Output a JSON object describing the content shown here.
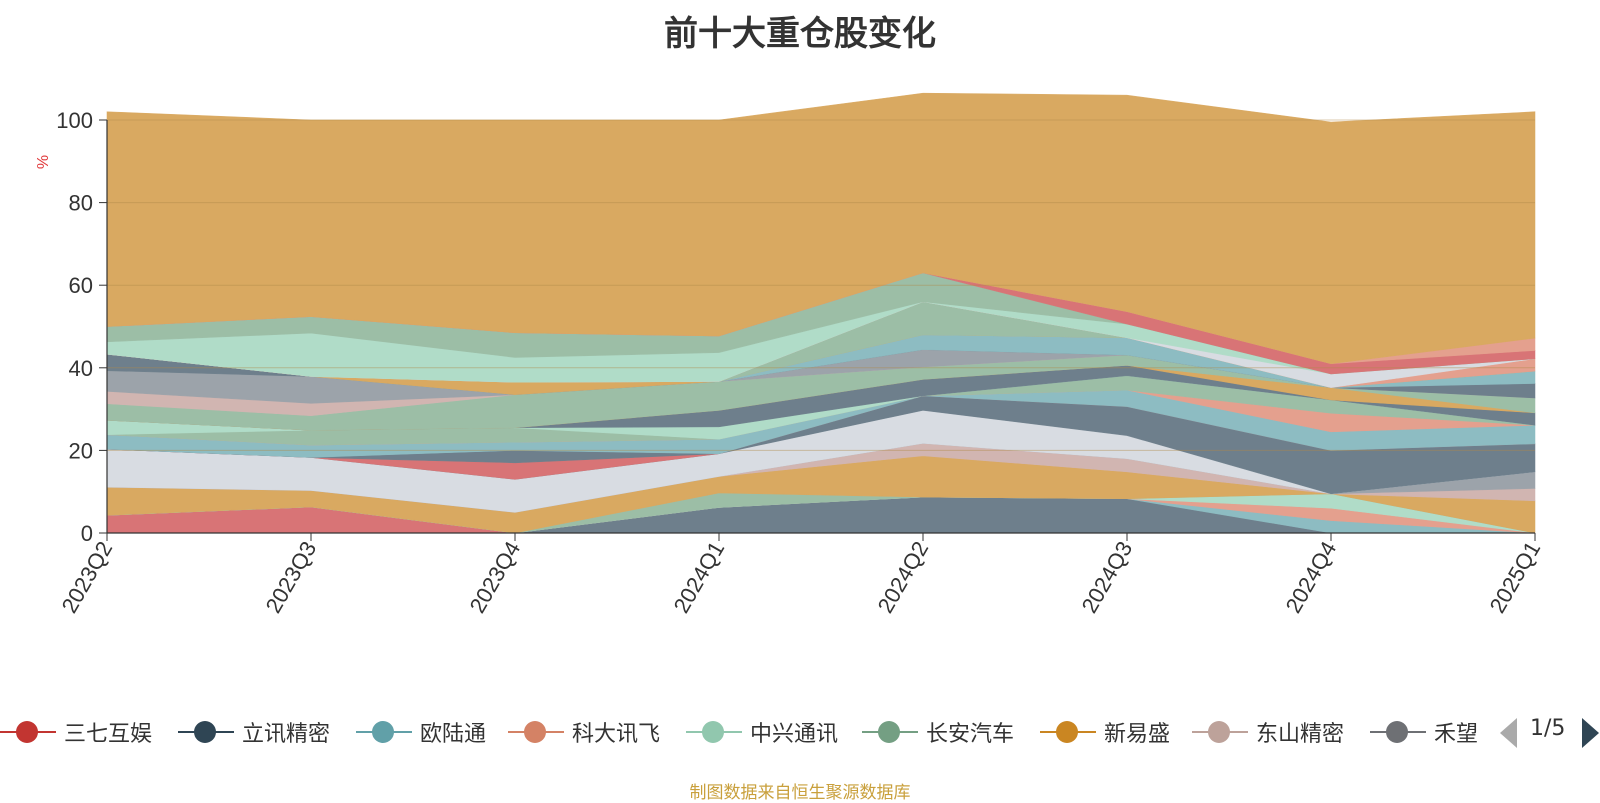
{
  "chart_data": {
    "type": "area",
    "title": "前十大重仓股变化",
    "ylabel": "%",
    "ylim": [
      0,
      100
    ],
    "yticks": [
      0,
      20,
      40,
      60,
      80,
      100
    ],
    "grid": true,
    "stacked": true,
    "categories": [
      "2023Q2",
      "2023Q3",
      "2023Q4",
      "2024Q1",
      "2024Q2",
      "2024Q3",
      "2024Q4",
      "2025Q1"
    ],
    "layers": [
      {
        "values": [
          4.3,
          6.3,
          0.0,
          0.0,
          0.0,
          0.0,
          0.0,
          0.0
        ],
        "color": "#d87476"
      },
      {
        "values": [
          0.0,
          0.0,
          0.0,
          6.2,
          8.7,
          8.3,
          0.0,
          0.0
        ],
        "color": "#6e7f8c"
      },
      {
        "values": [
          0.0,
          0.0,
          0.0,
          0.0,
          0.0,
          0.0,
          3.0,
          0.0
        ],
        "color": "#8dbcc2"
      },
      {
        "values": [
          0.0,
          0.0,
          0.0,
          0.0,
          0.0,
          0.0,
          3.0,
          0.0
        ],
        "color": "#e4a08e"
      },
      {
        "values": [
          0.0,
          0.0,
          0.0,
          0.0,
          0.0,
          0.0,
          3.5,
          0.0
        ],
        "color": "#b0dcc8"
      },
      {
        "values": [
          0.0,
          0.0,
          0.0,
          3.5,
          0.0,
          0.0,
          0.0,
          0.0
        ],
        "color": "#9cbea6"
      },
      {
        "values": [
          6.8,
          4.0,
          5.0,
          4.0,
          10.0,
          6.5,
          0.0,
          7.8
        ],
        "color": "#d9a961"
      },
      {
        "values": [
          0.0,
          0.0,
          0.0,
          0.0,
          3.0,
          3.2,
          0.0,
          3.0
        ],
        "color": "#d1b5b1"
      },
      {
        "values": [
          0.0,
          0.0,
          0.0,
          0.0,
          0.0,
          0.0,
          0.0,
          4.0
        ],
        "color": "#9ca3aa"
      },
      {
        "values": [
          9.2,
          8.0,
          8.0,
          5.5,
          8.0,
          5.6,
          0.0,
          0.0
        ],
        "color": "#d8dce2"
      },
      {
        "values": [
          0.0,
          0.0,
          0.0,
          0.0,
          3.5,
          7.0,
          10.5,
          6.8
        ],
        "color": "#6e7f8c"
      },
      {
        "values": [
          0.0,
          0.0,
          4.0,
          0.0,
          0.0,
          0.0,
          0.0,
          0.0
        ],
        "color": "#d87476"
      },
      {
        "values": [
          0.0,
          0.0,
          3.0,
          0.0,
          0.0,
          0.0,
          0.0,
          0.0
        ],
        "color": "#6e7f8c"
      },
      {
        "values": [
          3.5,
          3.0,
          2.0,
          3.5,
          0.0,
          4.0,
          4.5,
          4.5
        ],
        "color": "#8dbcc2"
      },
      {
        "values": [
          0.0,
          0.0,
          0.0,
          0.0,
          0.0,
          0.0,
          4.5,
          0.0
        ],
        "color": "#e4a08e"
      },
      {
        "values": [
          0.0,
          3.6,
          3.5,
          0.0,
          0.0,
          3.5,
          3.2,
          0.0
        ],
        "color": "#9cbea6"
      },
      {
        "values": [
          3.5,
          0.0,
          0.0,
          3.0,
          0.0,
          0.0,
          0.0,
          0.0
        ],
        "color": "#b0dcc8"
      },
      {
        "values": [
          0.0,
          0.0,
          0.0,
          4.0,
          4.0,
          2.5,
          0.0,
          3.0
        ],
        "color": "#6e7f8c"
      },
      {
        "values": [
          0.0,
          0.0,
          0.0,
          0.0,
          0.0,
          0.0,
          3.0,
          0.0
        ],
        "color": "#d9a961"
      },
      {
        "values": [
          4.0,
          3.5,
          8.0,
          7.0,
          3.0,
          2.5,
          0.0,
          3.6
        ],
        "color": "#9cbea6"
      },
      {
        "values": [
          3.0,
          3.0,
          0.0,
          0.0,
          0.0,
          0.0,
          0.0,
          0.0
        ],
        "color": "#d1b5b1"
      },
      {
        "values": [
          5.0,
          6.5,
          0.0,
          0.0,
          4.2,
          0.0,
          0.0,
          0.0
        ],
        "color": "#9ca3aa"
      },
      {
        "values": [
          4.0,
          0.0,
          0.0,
          0.0,
          0.0,
          0.0,
          0.0,
          3.5
        ],
        "color": "#6e7f8c"
      },
      {
        "values": [
          0.0,
          0.0,
          0.0,
          0.0,
          3.6,
          4.2,
          0.0,
          3.0
        ],
        "color": "#8dbcc2"
      },
      {
        "values": [
          0.0,
          0.0,
          3.0,
          0.0,
          0.0,
          0.0,
          0.0,
          0.0
        ],
        "color": "#d9a961"
      },
      {
        "values": [
          0.0,
          0.0,
          0.0,
          0.0,
          8.0,
          0.0,
          0.0,
          0.0
        ],
        "color": "#9cbea6"
      },
      {
        "values": [
          0.0,
          0.0,
          0.0,
          0.0,
          0.0,
          0.0,
          0.0,
          3.0
        ],
        "color": "#e4a08e"
      },
      {
        "values": [
          0.0,
          0.0,
          0.0,
          0.0,
          0.0,
          0.0,
          3.3,
          0.0
        ],
        "color": "#d8dce2"
      },
      {
        "values": [
          3.0,
          10.5,
          6.0,
          7.0,
          0.0,
          3.3,
          0.0,
          0.0
        ],
        "color": "#b0dcc8"
      },
      {
        "values": [
          3.7,
          4.0,
          6.0,
          4.0,
          7.0,
          0.0,
          0.0,
          0.0
        ],
        "color": "#9cbea6"
      },
      {
        "values": [
          0.0,
          0.0,
          0.0,
          0.0,
          0.0,
          3.0,
          2.5,
          2.0
        ],
        "color": "#d87476"
      },
      {
        "values": [
          0.0,
          0.0,
          0.0,
          0.0,
          0.0,
          0.0,
          0.0,
          3.0
        ],
        "color": "#e4a08e"
      },
      {
        "values": [
          52.0,
          47.6,
          51.5,
          52.3,
          43.5,
          52.4,
          58.5,
          54.8
        ],
        "color": "#d9a961"
      }
    ],
    "legend": [
      {
        "name": "三七互娱",
        "color": "#c23531"
      },
      {
        "name": "立讯精密",
        "color": "#2f4554"
      },
      {
        "name": "欧陆通",
        "color": "#61a0a8"
      },
      {
        "name": "科大讯飞",
        "color": "#d48265"
      },
      {
        "name": "中兴通讯",
        "color": "#91c7ae"
      },
      {
        "name": "长安汽车",
        "color": "#749f83"
      },
      {
        "name": "新易盛",
        "color": "#ca8622"
      },
      {
        "name": "东山精密",
        "color": "#bda29a"
      },
      {
        "name": "禾望电气",
        "color": "#6e7074"
      }
    ],
    "legend_page": "1/5"
  },
  "footer": "制图数据来自恒生聚源数据库"
}
